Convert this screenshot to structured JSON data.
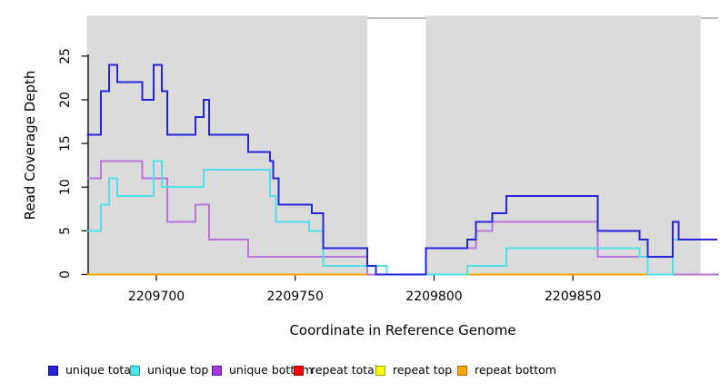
{
  "chart_data": {
    "type": "line",
    "subtype": "step-coverage",
    "title": "",
    "xlabel": "Coordinate in Reference Genome",
    "ylabel": "Read Coverage Depth",
    "xlim": [
      2209675,
      2209902
    ],
    "ylim": [
      0,
      29.6
    ],
    "x_ticks": [
      "2209700",
      "2209750",
      "2209800",
      "2209850"
    ],
    "x_tick_values": [
      2209700,
      2209750,
      2209800,
      2209850
    ],
    "y_ticks": [
      "0",
      "5",
      "10",
      "15",
      "20",
      "25"
    ],
    "y_tick_values": [
      0,
      5,
      10,
      15,
      20,
      25
    ],
    "grid": false,
    "legend_position": "bottom",
    "background_shaded_color": "#DBDBDB",
    "shaded_regions": [
      [
        2209675,
        2209776
      ],
      [
        2209797,
        2209896
      ]
    ],
    "gap_regions": [
      [
        2209776,
        2209797
      ],
      [
        2209896,
        2209902
      ]
    ],
    "series": [
      {
        "name": "repeat top",
        "color": "#FFEB00",
        "swatch_border": "#A8A000",
        "steps": [
          [
            2209675,
            0
          ],
          [
            2209902,
            0
          ]
        ]
      },
      {
        "name": "repeat total",
        "color": "#E00000",
        "swatch_border": "#8F0000",
        "steps": [
          [
            2209675,
            0
          ],
          [
            2209902,
            0
          ]
        ]
      },
      {
        "name": "repeat bottom",
        "color": "#FFA500",
        "swatch_border": "#A86A00",
        "steps": [
          [
            2209675,
            0
          ],
          [
            2209902,
            0
          ]
        ]
      },
      {
        "name": "unique bottom",
        "color": "#BA75DB",
        "swatch_border": "#7A1FA8",
        "steps": [
          [
            2209675,
            11
          ],
          [
            2209680,
            13
          ],
          [
            2209695,
            11
          ],
          [
            2209704,
            6
          ],
          [
            2209714,
            8
          ],
          [
            2209719,
            4
          ],
          [
            2209733,
            2
          ],
          [
            2209776,
            0
          ],
          [
            2209797,
            3
          ],
          [
            2209815,
            5
          ],
          [
            2209821,
            6
          ],
          [
            2209859,
            2
          ],
          [
            2209877,
            0
          ],
          [
            2209902,
            0
          ]
        ]
      },
      {
        "name": "unique top",
        "color": "#4FE0EA",
        "swatch_border": "#00A8B4",
        "steps": [
          [
            2209675,
            5
          ],
          [
            2209680,
            8
          ],
          [
            2209683,
            11
          ],
          [
            2209686,
            9
          ],
          [
            2209699,
            13
          ],
          [
            2209702,
            10
          ],
          [
            2209717,
            12
          ],
          [
            2209741,
            9
          ],
          [
            2209743,
            6
          ],
          [
            2209755,
            5
          ],
          [
            2209760,
            1
          ],
          [
            2209783,
            0
          ],
          [
            2209812,
            1
          ],
          [
            2209826,
            3
          ],
          [
            2209874,
            2
          ],
          [
            2209877,
            0
          ],
          [
            2209886,
            4
          ],
          [
            2209902,
            4
          ]
        ]
      },
      {
        "name": "unique total",
        "color": "#2525DC",
        "swatch_border": "#0000A0",
        "steps": [
          [
            2209675,
            16
          ],
          [
            2209680,
            21
          ],
          [
            2209683,
            24
          ],
          [
            2209686,
            22
          ],
          [
            2209695,
            20
          ],
          [
            2209699,
            24
          ],
          [
            2209702,
            21
          ],
          [
            2209704,
            16
          ],
          [
            2209714,
            18
          ],
          [
            2209717,
            20
          ],
          [
            2209719,
            16
          ],
          [
            2209733,
            14
          ],
          [
            2209741,
            13
          ],
          [
            2209742,
            11
          ],
          [
            2209744,
            8
          ],
          [
            2209756,
            7
          ],
          [
            2209760,
            3
          ],
          [
            2209776,
            1
          ],
          [
            2209779,
            0
          ],
          [
            2209797,
            3
          ],
          [
            2209812,
            4
          ],
          [
            2209815,
            6
          ],
          [
            2209821,
            7
          ],
          [
            2209826,
            9
          ],
          [
            2209859,
            5
          ],
          [
            2209874,
            4
          ],
          [
            2209877,
            2
          ],
          [
            2209886,
            6
          ],
          [
            2209888,
            4
          ],
          [
            2209902,
            4
          ]
        ]
      }
    ],
    "legend": [
      {
        "label": "unique total",
        "color": "#2525DC",
        "border": "#0000A0"
      },
      {
        "label": "unique top",
        "color": "#4FE0EA",
        "border": "#00A8B4"
      },
      {
        "label": "unique bottom",
        "color": "#A535E0",
        "border": "#6A1090"
      },
      {
        "label": "repeat total",
        "color": "#FF0000",
        "border": "#8F0000"
      },
      {
        "label": "repeat top",
        "color": "#FFFF00",
        "border": "#A8A000"
      },
      {
        "label": "repeat bottom",
        "color": "#FFA500",
        "border": "#A86A00"
      }
    ],
    "axis_color": "#000000",
    "top_rule_color": "#8F8F8F"
  }
}
